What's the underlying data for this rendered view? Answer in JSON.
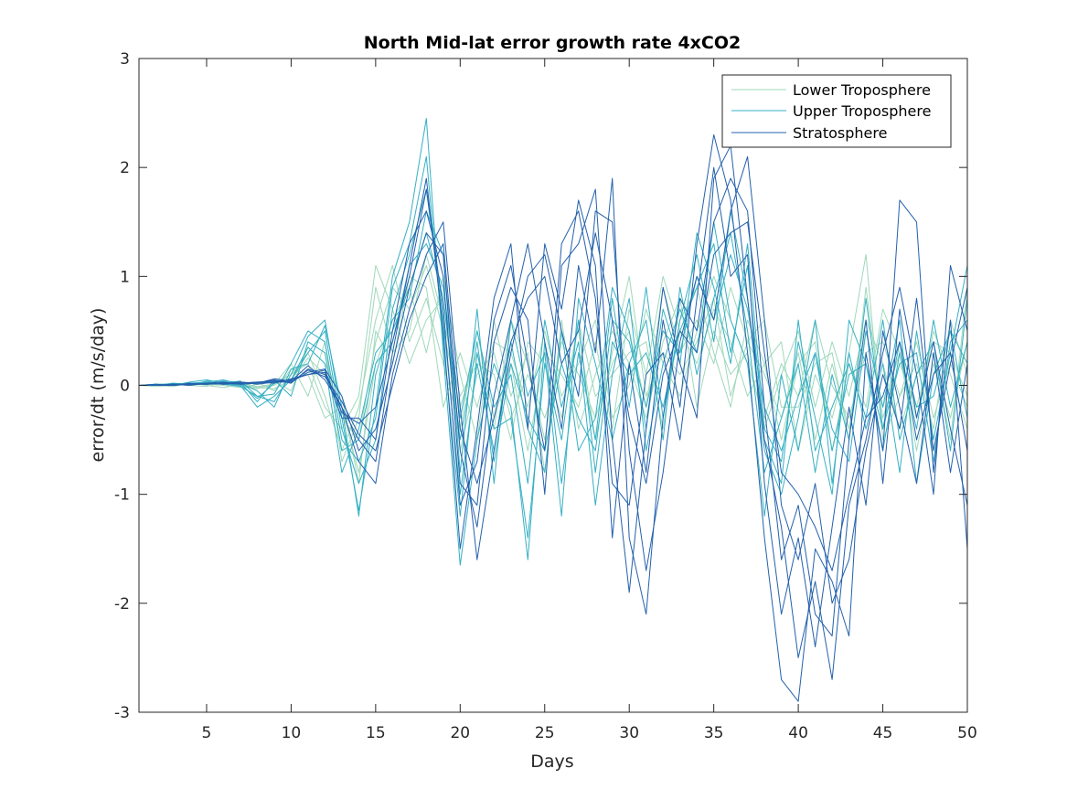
{
  "chart_data": {
    "type": "line",
    "title": "North Mid-lat error growth rate 4xCO2",
    "xlabel": "Days",
    "ylabel": "error/dt (m/s/day)",
    "xlim": [
      1,
      50
    ],
    "ylim": [
      -3,
      3
    ],
    "xticks": [
      5,
      10,
      15,
      20,
      25,
      30,
      35,
      40,
      45,
      50
    ],
    "yticks": [
      -3,
      -2,
      -1,
      0,
      1,
      2,
      3
    ],
    "grid": false,
    "legend_position": "top-right",
    "groups": [
      {
        "name": "Lower Troposphere",
        "color": "#9fd8bc"
      },
      {
        "name": "Upper Troposphere",
        "color": "#35b0c4"
      },
      {
        "name": "Stratosphere",
        "color": "#2360ac"
      }
    ],
    "x": [
      1,
      2,
      3,
      4,
      5,
      6,
      7,
      8,
      9,
      10,
      11,
      12,
      13,
      14,
      15,
      16,
      17,
      18,
      19,
      20,
      21,
      22,
      23,
      24,
      25,
      26,
      27,
      28,
      29,
      30,
      31,
      32,
      33,
      34,
      35,
      36,
      37,
      38,
      39,
      40,
      41,
      42,
      43,
      44,
      45,
      46,
      47,
      48,
      49,
      50
    ],
    "series": [
      {
        "group": 0,
        "values": [
          0,
          0,
          0.01,
          0,
          0.02,
          0.01,
          0,
          -0.02,
          -0.03,
          0.05,
          0.25,
          0.1,
          -0.3,
          -0.5,
          0.4,
          0.9,
          0.7,
          1.1,
          0.5,
          -0.2,
          0.3,
          -0.4,
          0.6,
          0.2,
          -0.5,
          0.4,
          0.1,
          -0.3,
          0.2,
          0.5,
          -0.2,
          0.9,
          0.3,
          0.6,
          0.2,
          0.9,
          0.4,
          0.1,
          -0.3,
          0.3,
          -0.5,
          0.2,
          -0.4,
          0.5,
          -0.2,
          0.3,
          -0.6,
          0.2,
          -0.3,
          0.4
        ]
      },
      {
        "group": 0,
        "values": [
          0,
          0.01,
          0,
          0.01,
          0.01,
          0.02,
          -0.01,
          -0.03,
          0.02,
          0.1,
          0.3,
          -0.1,
          -0.6,
          -0.2,
          0.6,
          1.1,
          0.4,
          0.8,
          0.2,
          -0.4,
          0.5,
          -0.3,
          0.2,
          -0.6,
          0.3,
          0.1,
          -0.2,
          0.4,
          -0.4,
          0.7,
          0.1,
          1.0,
          0.5,
          0.2,
          0.7,
          0.4,
          -0.1,
          0.2,
          0.4,
          -0.6,
          0.1,
          -0.3,
          0.3,
          1.2,
          -0.5,
          -0.1,
          0.4,
          -0.3,
          0.2,
          -0.2
        ]
      },
      {
        "group": 0,
        "values": [
          0,
          0,
          -0.01,
          0.02,
          0,
          -0.02,
          0.01,
          0.03,
          -0.05,
          0.15,
          0.1,
          -0.3,
          -0.2,
          -0.8,
          0.2,
          0.6,
          0.9,
          0.3,
          1.0,
          0.1,
          -0.5,
          0.6,
          -0.1,
          0.3,
          -0.8,
          0.6,
          -0.4,
          0.1,
          0.5,
          0.2,
          -0.3,
          0.4,
          0.8,
          -0.2,
          0.5,
          0.1,
          0.3,
          -0.4,
          0.1,
          0.5,
          -0.2,
          0.4,
          -0.1,
          0.6,
          0.2,
          -0.4,
          0.1,
          0.3,
          -0.5,
          0.9
        ]
      },
      {
        "group": 0,
        "values": [
          0,
          0.01,
          0.01,
          0,
          -0.01,
          0.03,
          0.02,
          -0.01,
          0.01,
          0.2,
          -0.1,
          0.4,
          -0.7,
          -0.3,
          0.9,
          0.3,
          0.5,
          1.2,
          0.6,
          -0.1,
          0.2,
          0.1,
          -0.5,
          0.4,
          0.2,
          -0.3,
          0.6,
          -0.1,
          0.1,
          0.3,
          0.4,
          -0.4,
          0.6,
          0.9,
          0.3,
          -0.2,
          0.6,
          0.2,
          -0.5,
          0.2,
          0.4,
          -0.6,
          0.2,
          -0.2,
          0.7,
          0.3,
          -0.3,
          0.5,
          0.1,
          -0.4
        ]
      },
      {
        "group": 0,
        "values": [
          0,
          0,
          0.02,
          0.01,
          0.01,
          0,
          -0.02,
          0.01,
          0.04,
          -0.05,
          0.35,
          0.2,
          -0.1,
          -0.9,
          0.5,
          0.2,
          1.0,
          0.9,
          -0.2,
          0.3,
          -0.2,
          0.4,
          0.3,
          -0.2,
          0.5,
          -0.1,
          0.2,
          0.6,
          -0.3,
          0.0,
          0.7,
          0.2,
          -0.1,
          0.5,
          1.0,
          0.6,
          0.2,
          -0.3,
          0.2,
          -0.1,
          0.6,
          0.0,
          -0.3,
          0.3,
          0.4,
          -0.1,
          0.2,
          -0.4,
          0.6,
          0.1
        ]
      },
      {
        "group": 0,
        "values": [
          0,
          -0.01,
          0,
          0.01,
          0.02,
          0.01,
          0.01,
          -0.02,
          0,
          0.1,
          0.2,
          -0.2,
          -0.4,
          -0.1,
          1.1,
          0.7,
          0.2,
          0.6,
          0.8,
          -0.6,
          0.1,
          0.3,
          -0.3,
          0.1,
          -0.3,
          0.2,
          0.5,
          -0.5,
          0.3,
          1.0,
          -0.1,
          0.3,
          0.1,
          0.4,
          0.8,
          -0.1,
          0.4,
          0.6,
          -0.2,
          -0.2,
          0.2,
          0.3,
          -0.5,
          0.9,
          -0.3,
          0.2,
          -0.2,
          0.4,
          0.3,
          -0.1
        ]
      },
      {
        "group": 1,
        "values": [
          0,
          0,
          0.01,
          0.02,
          0.03,
          0.01,
          -0.01,
          -0.1,
          -0.15,
          0.1,
          0.45,
          0.6,
          -0.3,
          -1.15,
          -0.2,
          1.0,
          1.5,
          2.45,
          0.3,
          -1.65,
          -0.5,
          0.2,
          -0.2,
          -1.6,
          0.4,
          -0.9,
          0.3,
          -0.5,
          0.8,
          -0.2,
          0.9,
          -0.3,
          0.6,
          1.2,
          0.4,
          1.6,
          0.8,
          -0.6,
          -1.0,
          -0.3,
          0.6,
          -0.9,
          0.3,
          -0.4,
          0.2,
          -0.8,
          0.5,
          -0.5,
          0.3,
          1.1
        ]
      },
      {
        "group": 1,
        "values": [
          0,
          0.01,
          0,
          0.03,
          0.05,
          0.02,
          0,
          -0.2,
          -0.1,
          0.05,
          0.3,
          0.5,
          -0.4,
          -0.9,
          -0.5,
          0.7,
          1.2,
          1.8,
          0.6,
          -1.0,
          0.2,
          -0.6,
          0.4,
          -0.4,
          -0.8,
          0.5,
          -0.6,
          -0.3,
          0.9,
          0.5,
          -0.4,
          0.7,
          0.2,
          1.4,
          0.9,
          0.2,
          1.3,
          -0.4,
          -0.7,
          0.4,
          -0.3,
          -1.0,
          0.6,
          0.2,
          -0.6,
          0.3,
          -0.4,
          0.6,
          -0.2,
          0.4
        ]
      },
      {
        "group": 1,
        "values": [
          0,
          0,
          0.02,
          0.01,
          0.02,
          0.04,
          0.03,
          -0.15,
          0.05,
          -0.1,
          0.4,
          0.3,
          -0.6,
          -0.5,
          0.2,
          0.4,
          1.1,
          1.3,
          0.9,
          -0.3,
          0.5,
          -0.2,
          0.1,
          -0.9,
          0.6,
          -0.2,
          0.4,
          -1.1,
          0.1,
          0.8,
          -0.6,
          0.2,
          0.7,
          0.3,
          1.5,
          0.6,
          0.2,
          -1.2,
          0.1,
          -0.6,
          0.3,
          -0.4,
          -0.7,
          0.5,
          -0.2,
          0.6,
          -0.9,
          0.1,
          0.5,
          -0.3
        ]
      },
      {
        "group": 1,
        "values": [
          0,
          0.01,
          0.01,
          0,
          0.04,
          0.03,
          0.02,
          -0.05,
          -0.2,
          0.15,
          0.2,
          0.55,
          -0.2,
          -1.2,
          0.1,
          0.6,
          0.8,
          1.6,
          1.2,
          -0.8,
          0.7,
          -0.9,
          0.6,
          -0.1,
          0.3,
          -1.2,
          0.8,
          0.2,
          -0.5,
          0.2,
          0.6,
          -0.5,
          0.9,
          0.1,
          0.8,
          1.4,
          0.5,
          -0.8,
          -0.3,
          0.2,
          -0.8,
          0.1,
          -0.5,
          0.8,
          -0.4,
          0.2,
          0.3,
          -0.7,
          0.4,
          0.6
        ]
      },
      {
        "group": 1,
        "values": [
          0,
          0,
          0.01,
          0.02,
          0.01,
          0.02,
          0.04,
          -0.1,
          -0.08,
          0.2,
          0.5,
          0.4,
          -0.5,
          -0.7,
          -0.3,
          0.9,
          1.3,
          2.1,
          0.4,
          -1.2,
          0.3,
          -0.4,
          -0.3,
          -1.4,
          0.2,
          -0.5,
          0.6,
          -0.8,
          0.4,
          0.1,
          0.3,
          -0.2,
          0.5,
          0.9,
          1.3,
          0.3,
          1.1,
          -0.5,
          -0.9,
          0.6,
          -0.6,
          -0.2,
          0.2,
          -0.3,
          0.6,
          -0.5,
          0.1,
          0.4,
          -0.6,
          0.8
        ]
      },
      {
        "group": 1,
        "values": [
          0,
          0.01,
          0,
          0.01,
          0.03,
          0.05,
          0.01,
          -0.12,
          0.02,
          0.05,
          0.35,
          0.2,
          -0.8,
          -0.4,
          0.3,
          0.5,
          0.9,
          1.4,
          0.8,
          -0.5,
          0.4,
          -0.7,
          0.2,
          -0.3,
          -0.6,
          0.2,
          -0.3,
          -0.6,
          0.6,
          0.4,
          -0.2,
          0.5,
          0.3,
          1.0,
          0.6,
          1.2,
          0.7,
          -0.2,
          -0.6,
          -0.1,
          0.3,
          -0.6,
          0.1,
          0.2,
          -0.4,
          0.4,
          -0.2,
          -0.1,
          0.5,
          0.2
        ]
      },
      {
        "group": 2,
        "values": [
          0,
          0,
          0.01,
          0.01,
          0.02,
          0.03,
          0.01,
          0.02,
          0.05,
          0.02,
          0.15,
          0.1,
          -0.2,
          -0.5,
          -0.7,
          0.3,
          1.1,
          1.9,
          0.5,
          -1.5,
          -0.4,
          0.8,
          1.3,
          -0.4,
          1.3,
          0.7,
          1.7,
          1.1,
          -1.4,
          0.2,
          -0.8,
          0.6,
          -0.2,
          1.3,
          2.3,
          1.7,
          0.3,
          -1.4,
          -2.7,
          -2.9,
          -1.5,
          -1.8,
          -2.3,
          0.3,
          -0.6,
          1.7,
          1.5,
          -0.8,
          0.6,
          -1.5
        ]
      },
      {
        "group": 2,
        "values": [
          0,
          0,
          0,
          0.01,
          0.01,
          0.02,
          0.02,
          0.03,
          0.04,
          0.05,
          0.1,
          0.12,
          -0.3,
          -0.3,
          -0.5,
          0.5,
          1.3,
          1.6,
          1.0,
          -0.9,
          -1.1,
          0.4,
          0.9,
          0.6,
          -1.0,
          1.1,
          1.3,
          1.8,
          -0.5,
          -1.9,
          -0.4,
          0.9,
          0.2,
          -0.3,
          1.9,
          2.2,
          0.8,
          -0.5,
          -1.3,
          -2.5,
          -1.8,
          -2.7,
          -1.1,
          -0.5,
          0.3,
          0.9,
          0.1,
          -1.0,
          1.1,
          0.5
        ]
      },
      {
        "group": 2,
        "values": [
          0,
          0,
          0.01,
          0,
          0.02,
          0.01,
          0.03,
          0.01,
          0.03,
          0.03,
          0.12,
          0.15,
          -0.1,
          -0.6,
          -0.4,
          0.2,
          0.9,
          1.4,
          1.2,
          -0.6,
          -1.3,
          -0.1,
          0.6,
          1.3,
          0.4,
          -0.4,
          1.1,
          0.3,
          1.9,
          -1.4,
          -2.1,
          -0.3,
          0.8,
          0.5,
          1.5,
          1.9,
          1.6,
          -0.2,
          -1.6,
          -1.1,
          -2.1,
          -2.3,
          -0.5,
          0.6,
          -0.9,
          0.7,
          -0.3,
          0.4,
          -0.4,
          -1.1
        ]
      },
      {
        "group": 2,
        "values": [
          0,
          0,
          0,
          0.02,
          0.01,
          0.02,
          0.01,
          0.02,
          0.06,
          0.04,
          0.18,
          0.05,
          -0.2,
          -0.7,
          -0.9,
          0.1,
          0.7,
          1.2,
          1.5,
          -0.2,
          -1.6,
          -0.6,
          0.3,
          1.0,
          1.2,
          0.5,
          -0.1,
          1.6,
          1.5,
          -0.6,
          -1.7,
          -0.8,
          0.4,
          1.0,
          0.6,
          1.6,
          2.1,
          0.6,
          -1.1,
          -1.6,
          -0.9,
          -2.0,
          -1.6,
          -0.6,
          0.1,
          -0.4,
          0.8,
          -0.6,
          0.2,
          0.9
        ]
      },
      {
        "group": 2,
        "values": [
          0,
          0.01,
          0,
          0.01,
          0.02,
          0.01,
          0.02,
          0.03,
          0.02,
          0.06,
          0.1,
          0.14,
          -0.25,
          -0.35,
          -0.2,
          0.4,
          1.0,
          1.8,
          0.7,
          -1.1,
          -0.7,
          0.6,
          1.1,
          0.2,
          -0.6,
          1.3,
          1.6,
          0.8,
          -0.9,
          -1.1,
          0.1,
          0.3,
          -0.5,
          0.8,
          2.0,
          1.0,
          1.2,
          -0.9,
          -2.1,
          -1.4,
          -2.4,
          -1.3,
          -0.2,
          -1.1,
          0.5,
          -0.2,
          -0.9,
          0.3,
          -0.8,
          0.2
        ]
      },
      {
        "group": 2,
        "values": [
          0,
          0,
          0.01,
          0.01,
          0.01,
          0.02,
          0.03,
          0.02,
          0.04,
          0.03,
          0.14,
          0.08,
          -0.15,
          -0.45,
          -0.6,
          0.0,
          0.6,
          1.0,
          1.3,
          -0.4,
          -0.9,
          -0.3,
          0.4,
          0.8,
          1.0,
          0.2,
          0.5,
          1.4,
          0.6,
          -0.3,
          -0.9,
          0.1,
          0.5,
          0.3,
          1.2,
          1.4,
          1.5,
          0.3,
          -0.8,
          -1.0,
          -1.3,
          -1.7,
          -1.0,
          -0.3,
          -0.1,
          0.4,
          -0.5,
          0.1,
          0.3,
          -0.6
        ]
      }
    ]
  }
}
